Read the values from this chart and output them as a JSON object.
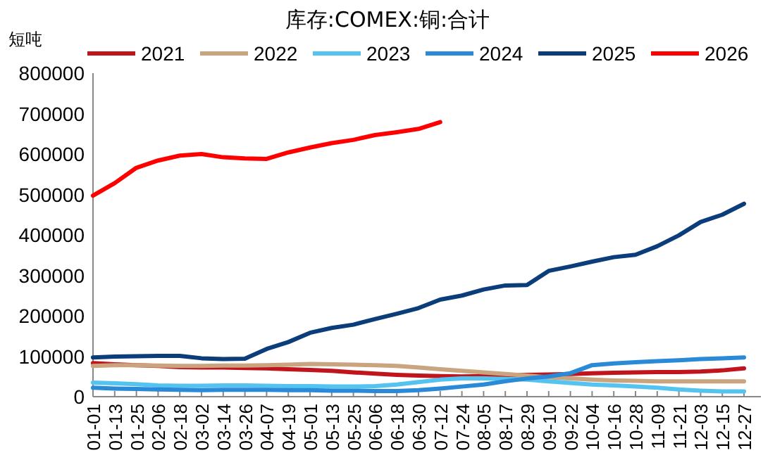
{
  "chart_data": {
    "type": "line",
    "title": "库存:COMEX:铜:合计",
    "ylabel": "短吨",
    "categories": [
      "01-01",
      "01-13",
      "01-25",
      "02-06",
      "02-18",
      "03-02",
      "03-14",
      "03-26",
      "04-07",
      "04-19",
      "05-01",
      "05-13",
      "05-25",
      "06-06",
      "06-18",
      "06-30",
      "07-12",
      "07-24",
      "08-05",
      "08-17",
      "08-29",
      "09-10",
      "09-22",
      "10-04",
      "10-16",
      "10-28",
      "11-09",
      "11-21",
      "12-03",
      "12-15",
      "12-27"
    ],
    "series": [
      {
        "name": "2021",
        "color": "#c0151d",
        "values": [
          83000,
          80000,
          78000,
          76000,
          73000,
          72000,
          72000,
          71000,
          70000,
          68000,
          66000,
          64000,
          60000,
          57000,
          54000,
          52000,
          51000,
          50000,
          51000,
          52000,
          54000,
          55000,
          56000,
          58000,
          59000,
          60000,
          61000,
          61000,
          62000,
          65000,
          70000
        ]
      },
      {
        "name": "2022",
        "color": "#c9a47e",
        "values": [
          76000,
          78000,
          78000,
          77000,
          76000,
          76000,
          77000,
          77000,
          78000,
          79000,
          81000,
          80000,
          79000,
          78000,
          76000,
          72000,
          68000,
          64000,
          60000,
          56000,
          52000,
          48000,
          45000,
          42000,
          40000,
          39000,
          38000,
          38000,
          38000,
          38000,
          38000
        ]
      },
      {
        "name": "2023",
        "color": "#55c3f0",
        "values": [
          35000,
          33000,
          31000,
          28000,
          27000,
          27000,
          28000,
          28000,
          27000,
          26000,
          26000,
          25000,
          25000,
          26000,
          30000,
          36000,
          42000,
          45000,
          45000,
          44000,
          42000,
          38000,
          34000,
          30000,
          28000,
          25000,
          22000,
          18000,
          15000,
          13000,
          13000
        ]
      },
      {
        "name": "2024",
        "color": "#2a8ad8",
        "values": [
          22000,
          20000,
          19000,
          18000,
          17000,
          16000,
          17000,
          17000,
          17000,
          16000,
          16000,
          15000,
          15000,
          14000,
          14000,
          16000,
          20000,
          25000,
          30000,
          38000,
          45000,
          50000,
          58000,
          78000,
          82000,
          85000,
          88000,
          90000,
          93000,
          95000,
          97000
        ]
      },
      {
        "name": "2025",
        "color": "#0b3d7a",
        "values": [
          97000,
          99000,
          100000,
          101000,
          101000,
          95000,
          93000,
          94000,
          118000,
          135000,
          158000,
          170000,
          178000,
          192000,
          205000,
          219000,
          240000,
          250000,
          265000,
          275000,
          276000,
          311000,
          322000,
          334000,
          345000,
          351000,
          372000,
          399000,
          432000,
          450000,
          477000
        ]
      },
      {
        "name": "2026",
        "color": "#ff0000",
        "values": [
          497000,
          528000,
          566000,
          584000,
          596000,
          600000,
          592000,
          589000,
          588000,
          604000,
          616000,
          627000,
          635000,
          647000,
          654000,
          662000,
          679000,
          null,
          null,
          null,
          null,
          null,
          null,
          null,
          null,
          null,
          null,
          null,
          null,
          null,
          null
        ]
      }
    ],
    "ylim": [
      0,
      800000
    ],
    "yticks": [
      0,
      100000,
      200000,
      300000,
      400000,
      500000,
      600000,
      700000,
      800000
    ],
    "legend": "top",
    "grid": false,
    "marker": "none",
    "line_style": "solid"
  }
}
